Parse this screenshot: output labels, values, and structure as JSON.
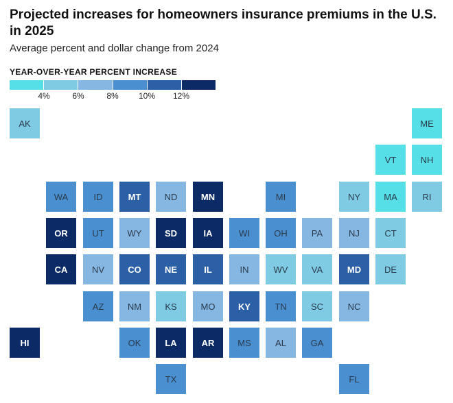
{
  "title": "Projected increases for homeowners insurance premiums in the U.S. in 2025",
  "subtitle": "Average percent and dollar change from 2024",
  "legend": {
    "title": "YEAR-OVER-YEAR PERCENT INCREASE",
    "colors": [
      "#56dfe6",
      "#7fcbe4",
      "#86b6e2",
      "#4a8fd0",
      "#2b5fa6",
      "#0c2b66"
    ],
    "ticks": [
      "4%",
      "6%",
      "8%",
      "10%",
      "12%"
    ]
  },
  "states": [
    {
      "abbr": "AK",
      "level": 1
    },
    {
      "abbr": "ME",
      "level": 0
    },
    {
      "abbr": "VT",
      "level": 0
    },
    {
      "abbr": "NH",
      "level": 0
    },
    {
      "abbr": "WA",
      "level": 3
    },
    {
      "abbr": "ID",
      "level": 3
    },
    {
      "abbr": "MT",
      "level": 4
    },
    {
      "abbr": "ND",
      "level": 2
    },
    {
      "abbr": "MN",
      "level": 5
    },
    {
      "abbr": "MI",
      "level": 3
    },
    {
      "abbr": "NY",
      "level": 1
    },
    {
      "abbr": "MA",
      "level": 0
    },
    {
      "abbr": "RI",
      "level": 1
    },
    {
      "abbr": "OR",
      "level": 5
    },
    {
      "abbr": "UT",
      "level": 3
    },
    {
      "abbr": "WY",
      "level": 2
    },
    {
      "abbr": "SD",
      "level": 5
    },
    {
      "abbr": "IA",
      "level": 5
    },
    {
      "abbr": "WI",
      "level": 3
    },
    {
      "abbr": "OH",
      "level": 3
    },
    {
      "abbr": "PA",
      "level": 2
    },
    {
      "abbr": "NJ",
      "level": 2
    },
    {
      "abbr": "CT",
      "level": 1
    },
    {
      "abbr": "CA",
      "level": 5
    },
    {
      "abbr": "NV",
      "level": 2
    },
    {
      "abbr": "CO",
      "level": 4
    },
    {
      "abbr": "NE",
      "level": 4
    },
    {
      "abbr": "IL",
      "level": 4
    },
    {
      "abbr": "IN",
      "level": 2
    },
    {
      "abbr": "WV",
      "level": 1
    },
    {
      "abbr": "VA",
      "level": 1
    },
    {
      "abbr": "MD",
      "level": 4
    },
    {
      "abbr": "DE",
      "level": 1
    },
    {
      "abbr": "AZ",
      "level": 3
    },
    {
      "abbr": "NM",
      "level": 2
    },
    {
      "abbr": "KS",
      "level": 1
    },
    {
      "abbr": "MO",
      "level": 2
    },
    {
      "abbr": "KY",
      "level": 4
    },
    {
      "abbr": "TN",
      "level": 3
    },
    {
      "abbr": "SC",
      "level": 1
    },
    {
      "abbr": "NC",
      "level": 2
    },
    {
      "abbr": "HI",
      "level": 5
    },
    {
      "abbr": "OK",
      "level": 3
    },
    {
      "abbr": "LA",
      "level": 5
    },
    {
      "abbr": "AR",
      "level": 5
    },
    {
      "abbr": "MS",
      "level": 3
    },
    {
      "abbr": "AL",
      "level": 2
    },
    {
      "abbr": "GA",
      "level": 3
    },
    {
      "abbr": "TX",
      "level": 3
    },
    {
      "abbr": "FL",
      "level": 3
    }
  ]
}
